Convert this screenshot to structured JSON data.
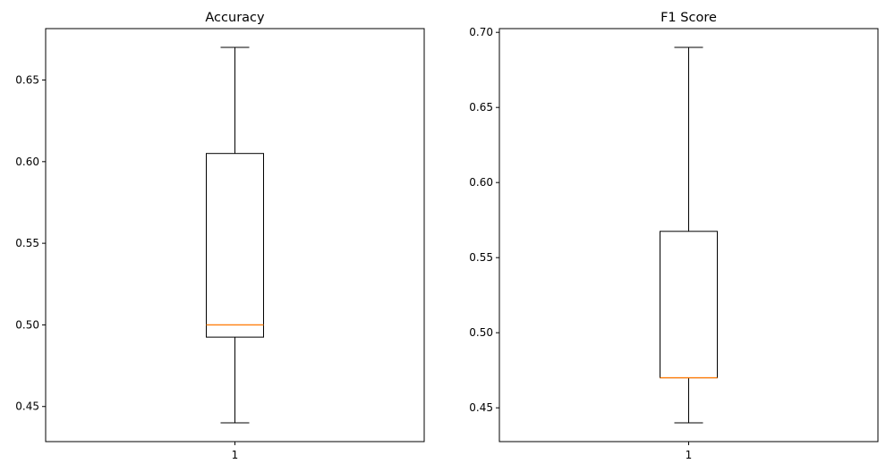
{
  "chart_data": [
    {
      "type": "box",
      "title": "Accuracy",
      "xlabel": "",
      "ylabel": "",
      "categories": [
        "1"
      ],
      "ylim": [
        0.4285,
        0.6815
      ],
      "yticks": [
        0.45,
        0.5,
        0.55,
        0.6,
        0.65
      ],
      "ytick_labels": [
        "0.45",
        "0.50",
        "0.55",
        "0.60",
        "0.65"
      ],
      "grid": false,
      "boxes": [
        {
          "category": "1",
          "whisker_low": 0.44,
          "q1": 0.4925,
          "median": 0.5,
          "q3": 0.605,
          "whisker_high": 0.67
        }
      ],
      "colors": {
        "box": "#000000",
        "median": "#ff7f0e"
      }
    },
    {
      "type": "box",
      "title": "F1 Score",
      "xlabel": "",
      "ylabel": "",
      "categories": [
        "1"
      ],
      "ylim": [
        0.4275,
        0.7025
      ],
      "yticks": [
        0.45,
        0.5,
        0.55,
        0.6,
        0.65,
        0.7
      ],
      "ytick_labels": [
        "0.45",
        "0.50",
        "0.55",
        "0.60",
        "0.65",
        "0.70"
      ],
      "grid": false,
      "boxes": [
        {
          "category": "1",
          "whisker_low": 0.44,
          "q1": 0.47,
          "median": 0.47,
          "q3": 0.5675,
          "whisker_high": 0.69
        }
      ],
      "colors": {
        "box": "#000000",
        "median": "#ff7f0e"
      }
    }
  ]
}
